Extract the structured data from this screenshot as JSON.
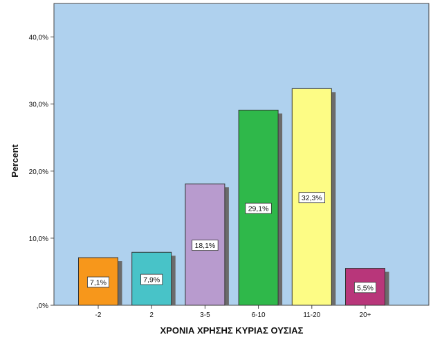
{
  "chart_data": {
    "type": "bar",
    "title": "",
    "xlabel": "ΧΡΟΝΙΑ ΧΡΗΣΗΣ ΚΥΡΙΑΣ ΟΥΣΙΑΣ",
    "ylabel": "Percent",
    "categories": [
      "-2",
      "2",
      "3-5",
      "6-10",
      "11-20",
      "20+"
    ],
    "values": [
      7.1,
      7.9,
      18.1,
      29.1,
      32.3,
      5.5
    ],
    "value_labels": [
      "7,1%",
      "7,9%",
      "18,1%",
      "29,1%",
      "32,3%",
      "5,5%"
    ],
    "ylim": [
      0,
      45
    ],
    "yticks": [
      0,
      10,
      20,
      30,
      40
    ],
    "ytick_labels": [
      ",0%",
      "10,0%",
      "20,0%",
      "30,0%",
      "40,0%"
    ],
    "grid": false,
    "legend": "none",
    "colors": {
      "plot_background": "#afd1ee",
      "bars": [
        "#f7971b",
        "#48c3c8",
        "#b89bce",
        "#2fb84a",
        "#fdfc85",
        "#b8367a"
      ],
      "shadow": "#6b6b6b",
      "axis": "#444444"
    }
  }
}
